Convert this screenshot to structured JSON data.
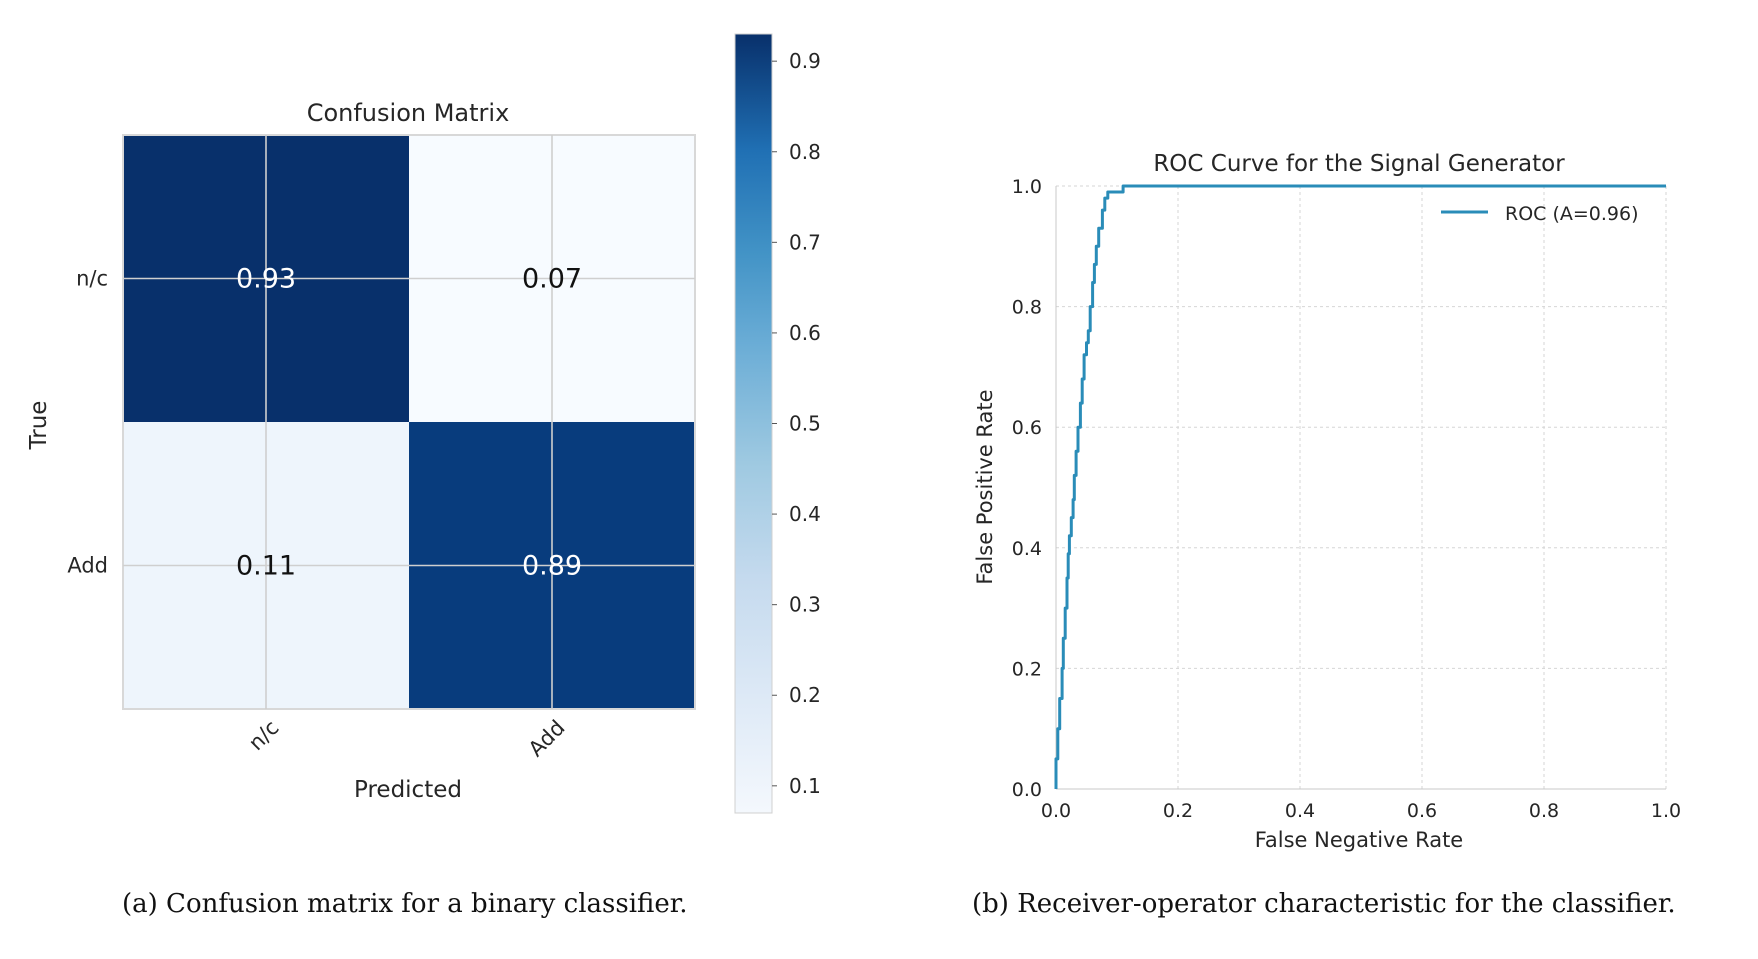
{
  "chart_data": [
    {
      "type": "heatmap",
      "title": "Confusion Matrix",
      "xlabel": "Predicted",
      "ylabel": "True",
      "x_categories": [
        "n/c",
        "Add"
      ],
      "y_categories": [
        "n/c",
        "Add"
      ],
      "values": [
        [
          0.93,
          0.07
        ],
        [
          0.11,
          0.89
        ]
      ],
      "value_labels": [
        [
          "0.93",
          "0.07"
        ],
        [
          "0.11",
          "0.89"
        ]
      ],
      "colormap": "Blues",
      "colorbar": {
        "range": [
          0.07,
          0.93
        ],
        "ticks": [
          0.1,
          0.2,
          0.3,
          0.4,
          0.5,
          0.6,
          0.7,
          0.8,
          0.9
        ],
        "tick_labels": [
          "0.1",
          "0.2",
          "0.3",
          "0.4",
          "0.5",
          "0.6",
          "0.7",
          "0.8",
          "0.9"
        ]
      },
      "grid": true,
      "caption": "(a) Confusion matrix for a binary classifier."
    },
    {
      "type": "line",
      "title": "ROC Curve for the Signal Generator",
      "xlabel": "False Negative Rate",
      "ylabel": "False Positive Rate",
      "xlim": [
        0.0,
        1.0
      ],
      "ylim": [
        0.0,
        1.0
      ],
      "xticks": [
        "0.0",
        "0.2",
        "0.4",
        "0.6",
        "0.8",
        "1.0"
      ],
      "yticks": [
        "0.0",
        "0.2",
        "0.4",
        "0.6",
        "0.8",
        "1.0"
      ],
      "grid": true,
      "legend_position": "top-right",
      "series": [
        {
          "name": "ROC (A=0.96)",
          "color": "#2a8cb8",
          "x": [
            0.0,
            0.003,
            0.006,
            0.01,
            0.012,
            0.015,
            0.018,
            0.02,
            0.022,
            0.025,
            0.028,
            0.03,
            0.033,
            0.036,
            0.04,
            0.043,
            0.046,
            0.05,
            0.053,
            0.056,
            0.06,
            0.063,
            0.066,
            0.07,
            0.073,
            0.076,
            0.08,
            0.085,
            0.09,
            0.1,
            0.11,
            0.13,
            1.0
          ],
          "y": [
            0.0,
            0.05,
            0.1,
            0.15,
            0.2,
            0.25,
            0.3,
            0.35,
            0.39,
            0.42,
            0.45,
            0.48,
            0.52,
            0.56,
            0.6,
            0.64,
            0.68,
            0.72,
            0.74,
            0.76,
            0.8,
            0.84,
            0.87,
            0.9,
            0.93,
            0.93,
            0.96,
            0.98,
            0.99,
            0.99,
            0.99,
            1.0,
            1.0
          ]
        }
      ],
      "caption": "(b) Receiver-operator characteristic for the classifier."
    }
  ]
}
